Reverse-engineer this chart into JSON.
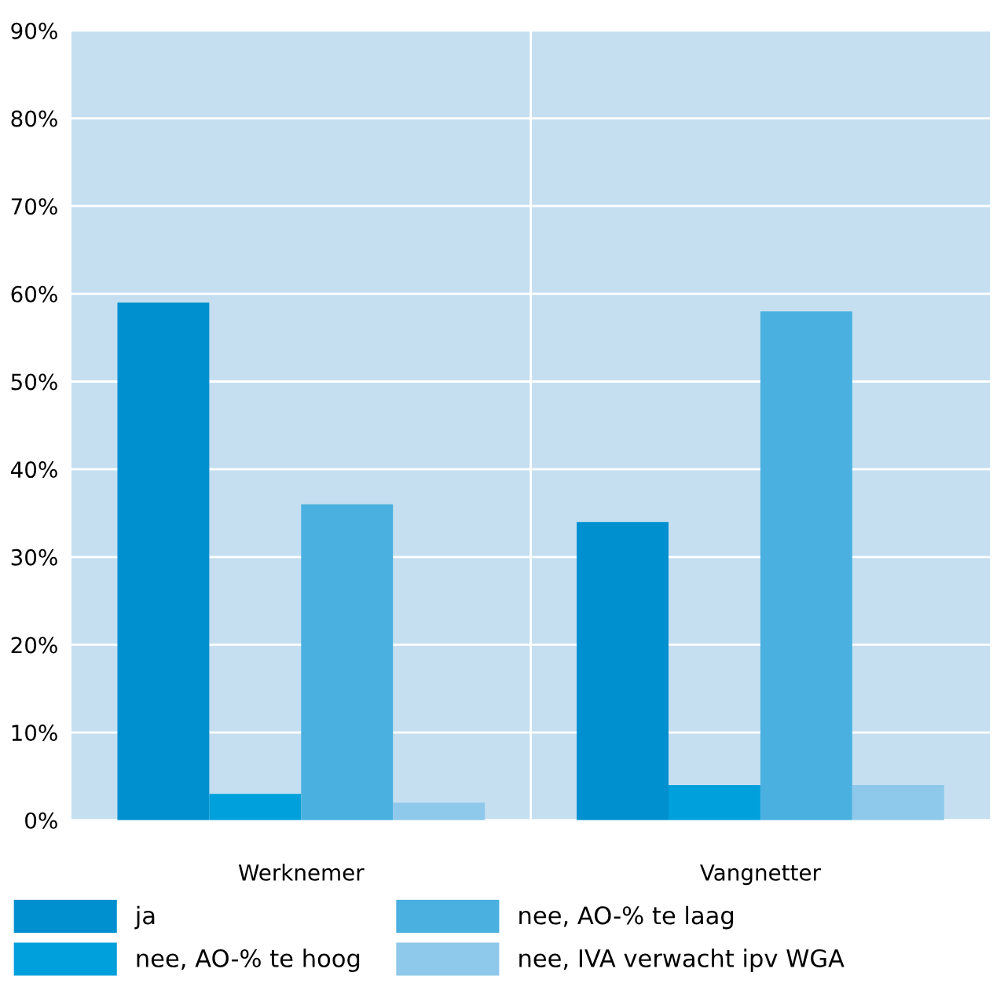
{
  "chart_data": {
    "type": "bar",
    "categories": [
      "Werknemer",
      "Vangnetter"
    ],
    "series": [
      {
        "name": "ja",
        "color": "#0090d0",
        "values": [
          59,
          34
        ]
      },
      {
        "name": "nee, AO-% te hoog",
        "color": "#00a0dc",
        "values": [
          3,
          4
        ]
      },
      {
        "name": "nee, AO-% te laag",
        "color": "#4ab0e0",
        "values": [
          36,
          58
        ]
      },
      {
        "name": "nee, IVA verwacht ipv WGA",
        "color": "#8ec8ea",
        "values": [
          2,
          4
        ]
      }
    ],
    "ylim": [
      0,
      90
    ],
    "yticks": [
      {
        "value": 0,
        "label": "0%"
      },
      {
        "value": 10,
        "label": "10%"
      },
      {
        "value": 20,
        "label": "20%"
      },
      {
        "value": 30,
        "label": "30%"
      },
      {
        "value": 40,
        "label": "40%"
      },
      {
        "value": 50,
        "label": "50%"
      },
      {
        "value": 60,
        "label": "60%"
      },
      {
        "value": 70,
        "label": "70%"
      },
      {
        "value": 80,
        "label": "80%"
      },
      {
        "value": 90,
        "label": "90%"
      }
    ],
    "grid": "y",
    "legend": "bottom"
  }
}
